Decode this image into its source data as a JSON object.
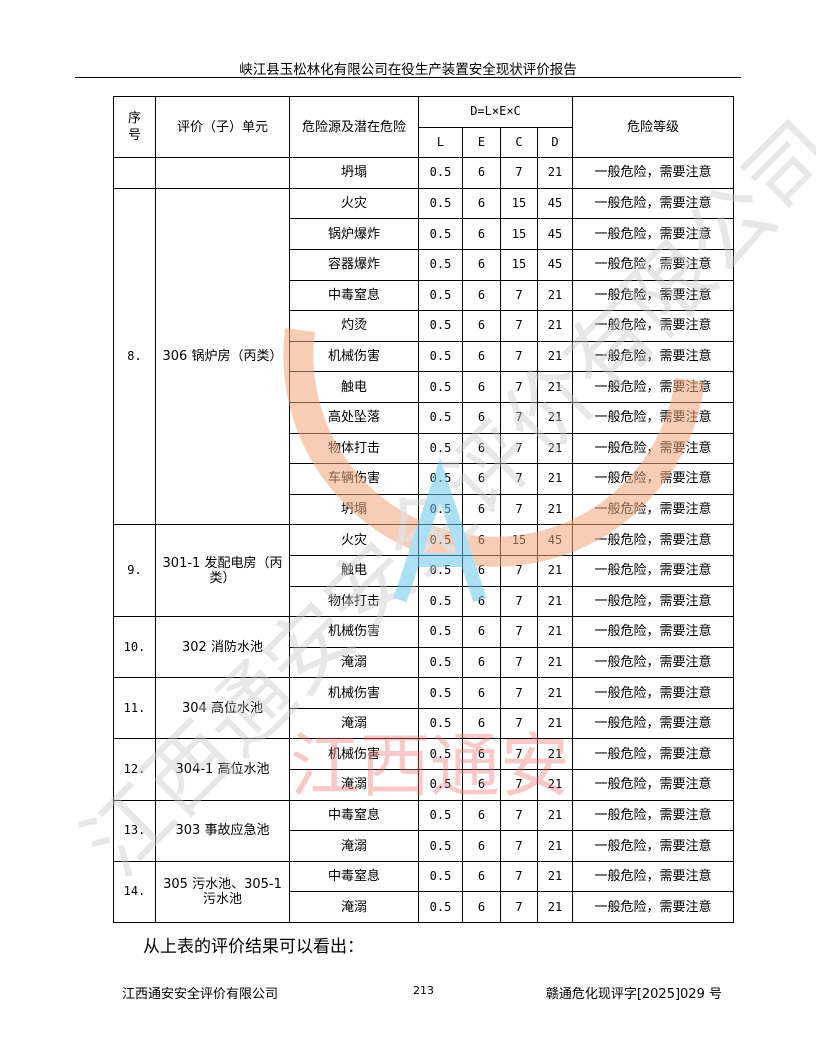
{
  "header": {
    "title": "峡江县玉松林化有限公司在役生产装置安全现状评价报告"
  },
  "table": {
    "headers": {
      "seq": "序号",
      "unit": "评价（子）单元",
      "hazard": "危险源及潜在危险",
      "formula": "D=L×E×C",
      "L": "L",
      "E": "E",
      "C": "C",
      "D": "D",
      "level": "危险等级"
    },
    "groups": [
      {
        "seq": "",
        "unit": "",
        "rows": [
          {
            "hazard": "坍塌",
            "L": "0.5",
            "E": "6",
            "C": "7",
            "D": "21",
            "level": "一般危险，需要注意"
          }
        ]
      },
      {
        "seq": "8.",
        "unit": "306 锅炉房（丙类）",
        "rows": [
          {
            "hazard": "火灾",
            "L": "0.5",
            "E": "6",
            "C": "15",
            "D": "45",
            "level": "一般危险，需要注意"
          },
          {
            "hazard": "锅炉爆炸",
            "L": "0.5",
            "E": "6",
            "C": "15",
            "D": "45",
            "level": "一般危险，需要注意"
          },
          {
            "hazard": "容器爆炸",
            "L": "0.5",
            "E": "6",
            "C": "15",
            "D": "45",
            "level": "一般危险，需要注意"
          },
          {
            "hazard": "中毒窒息",
            "L": "0.5",
            "E": "6",
            "C": "7",
            "D": "21",
            "level": "一般危险，需要注意"
          },
          {
            "hazard": "灼烫",
            "L": "0.5",
            "E": "6",
            "C": "7",
            "D": "21",
            "level": "一般危险，需要注意"
          },
          {
            "hazard": "机械伤害",
            "L": "0.5",
            "E": "6",
            "C": "7",
            "D": "21",
            "level": "一般危险，需要注意"
          },
          {
            "hazard": "触电",
            "L": "0.5",
            "E": "6",
            "C": "7",
            "D": "21",
            "level": "一般危险，需要注意"
          },
          {
            "hazard": "高处坠落",
            "L": "0.5",
            "E": "6",
            "C": "7",
            "D": "21",
            "level": "一般危险，需要注意"
          },
          {
            "hazard": "物体打击",
            "L": "0.5",
            "E": "6",
            "C": "7",
            "D": "21",
            "level": "一般危险，需要注意"
          },
          {
            "hazard": "车辆伤害",
            "L": "0.5",
            "E": "6",
            "C": "7",
            "D": "21",
            "level": "一般危险，需要注意"
          },
          {
            "hazard": "坍塌",
            "L": "0.5",
            "E": "6",
            "C": "7",
            "D": "21",
            "level": "一般危险，需要注意"
          }
        ]
      },
      {
        "seq": "9.",
        "unit": "301-1 发配电房（丙类）",
        "rows": [
          {
            "hazard": "火灾",
            "L": "0.5",
            "E": "6",
            "C": "15",
            "D": "45",
            "level": "一般危险，需要注意"
          },
          {
            "hazard": "触电",
            "L": "0.5",
            "E": "6",
            "C": "7",
            "D": "21",
            "level": "一般危险，需要注意"
          },
          {
            "hazard": "物体打击",
            "L": "0.5",
            "E": "6",
            "C": "7",
            "D": "21",
            "level": "一般危险，需要注意"
          }
        ]
      },
      {
        "seq": "10.",
        "unit": "302 消防水池",
        "rows": [
          {
            "hazard": "机械伤害",
            "L": "0.5",
            "E": "6",
            "C": "7",
            "D": "21",
            "level": "一般危险，需要注意"
          },
          {
            "hazard": "淹溺",
            "L": "0.5",
            "E": "6",
            "C": "7",
            "D": "21",
            "level": "一般危险，需要注意"
          }
        ]
      },
      {
        "seq": "11.",
        "unit": "304 高位水池",
        "rows": [
          {
            "hazard": "机械伤害",
            "L": "0.5",
            "E": "6",
            "C": "7",
            "D": "21",
            "level": "一般危险，需要注意"
          },
          {
            "hazard": "淹溺",
            "L": "0.5",
            "E": "6",
            "C": "7",
            "D": "21",
            "level": "一般危险，需要注意"
          }
        ]
      },
      {
        "seq": "12.",
        "unit": "304-1 高位水池",
        "rows": [
          {
            "hazard": "机械伤害",
            "L": "0.5",
            "E": "6",
            "C": "7",
            "D": "21",
            "level": "一般危险，需要注意"
          },
          {
            "hazard": "淹溺",
            "L": "0.5",
            "E": "6",
            "C": "7",
            "D": "21",
            "level": "一般危险，需要注意"
          }
        ]
      },
      {
        "seq": "13.",
        "unit": "303 事故应急池",
        "rows": [
          {
            "hazard": "中毒窒息",
            "L": "0.5",
            "E": "6",
            "C": "7",
            "D": "21",
            "level": "一般危险，需要注意"
          },
          {
            "hazard": "淹溺",
            "L": "0.5",
            "E": "6",
            "C": "7",
            "D": "21",
            "level": "一般危险，需要注意"
          }
        ]
      },
      {
        "seq": "14.",
        "unit": "305 污水池、305-1 污水池",
        "rows": [
          {
            "hazard": "中毒窒息",
            "L": "0.5",
            "E": "6",
            "C": "7",
            "D": "21",
            "level": "一般危险，需要注意"
          },
          {
            "hazard": "淹溺",
            "L": "0.5",
            "E": "6",
            "C": "7",
            "D": "21",
            "level": "一般危险，需要注意"
          }
        ]
      }
    ]
  },
  "watermark": {
    "text": "江西通安",
    "diagonal_text": "江西通安安全评价有限公司",
    "colors": {
      "ring": "#f4a57a",
      "text": "#f07070",
      "letter": "#6cc8ee",
      "diagonal": "#c8c8c8"
    }
  },
  "body": {
    "conclusion": "从上表的评价结果可以看出："
  },
  "footer": {
    "company": "江西通安安全评价有限公司",
    "page": "213",
    "doc_no": "赣通危化现评字[2025]029 号"
  }
}
